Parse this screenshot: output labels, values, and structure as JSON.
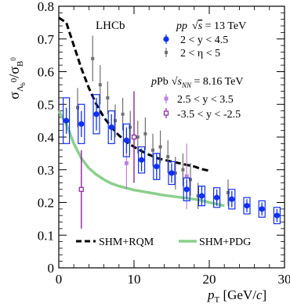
{
  "chart_data": {
    "type": "scatter",
    "title": "",
    "experiment_label": "LHCb",
    "xlabel": "p_T [GeV/c]",
    "ylabel": "σ_Λb / σ_B0",
    "xlim": [
      0,
      30
    ],
    "ylim": [
      0,
      0.8
    ],
    "x_ticks": [
      0,
      10,
      20,
      30
    ],
    "y_ticks": [
      0,
      0.1,
      0.2,
      0.3,
      0.4,
      0.5,
      0.6,
      0.7,
      0.8
    ],
    "x_tick_labels": [
      "0",
      "10",
      "20",
      "30"
    ],
    "y_tick_labels": [
      "0",
      "0.1",
      "0.2",
      "0.3",
      "0.4",
      "0.5",
      "0.6",
      "0.7",
      "0.8"
    ],
    "legend_pp_header": "pp √s = 13 TeV",
    "legend_ppb_header": "pPb √sNN = 8.16 TeV",
    "colors": {
      "blue": "#1030f0",
      "grey": "#707070",
      "light_purple": "#c080e0",
      "purple": "#9020a0",
      "black": "#000000",
      "green": "#8ccf8c"
    },
    "series": [
      {
        "name": "2 < y < 4.5",
        "group": "pp",
        "marker": "filled-circle",
        "x": [
          1,
          3,
          5,
          7,
          9,
          11,
          13,
          15,
          17,
          19,
          21,
          23,
          25,
          27,
          29
        ],
        "y": [
          0.45,
          0.44,
          0.47,
          0.43,
          0.39,
          0.33,
          0.31,
          0.29,
          0.24,
          0.22,
          0.215,
          0.21,
          0.19,
          0.18,
          0.16
        ],
        "stat_err": [
          0.04,
          0.04,
          0.05,
          0.04,
          0.04,
          0.035,
          0.04,
          0.03,
          0.03,
          0.03,
          0.025,
          0.025,
          0.02,
          0.02,
          0.02
        ],
        "syst_err": [
          0.07,
          0.06,
          0.06,
          0.05,
          0.05,
          0.04,
          0.04,
          0.035,
          0.035,
          0.03,
          0.03,
          0.03,
          0.025,
          0.025,
          0.025
        ]
      },
      {
        "name": "2 < η < 5",
        "group": "pp",
        "marker": "small-square",
        "x": [
          2.5,
          4.5,
          5.5,
          6.5,
          7.5,
          8.5,
          9.5,
          10.5,
          11.5,
          12.5,
          13.5,
          14.5,
          15.5,
          16.5,
          17.5,
          18.5,
          22.5
        ],
        "y": [
          0.49,
          0.64,
          0.56,
          0.52,
          0.45,
          0.47,
          0.43,
          0.4,
          0.41,
          0.36,
          0.37,
          0.34,
          0.29,
          0.3,
          0.27,
          0.22,
          0.23
        ],
        "stat_err": [
          0.06,
          0.07,
          0.06,
          0.05,
          0.05,
          0.05,
          0.05,
          0.05,
          0.05,
          0.05,
          0.05,
          0.05,
          0.05,
          0.05,
          0.05,
          0.04,
          0.04
        ]
      },
      {
        "name": "2.5 < y < 3.5",
        "group": "pPb",
        "marker": "filled-square",
        "x": [
          9,
          17
        ],
        "y": [
          0.32,
          0.28
        ],
        "stat_err": [
          0.08,
          0.1
        ]
      },
      {
        "name": "-3.5 < y < -2.5",
        "group": "pPb",
        "marker": "open-square",
        "x": [
          3,
          10
        ],
        "y": [
          0.24,
          0.4
        ],
        "stat_err": [
          0.12,
          0.14
        ]
      },
      {
        "name": "SHM+RQM",
        "style": "dashed-line",
        "x": [
          0,
          1,
          2,
          3,
          4,
          5,
          6,
          7,
          8,
          9,
          10,
          11,
          12,
          13,
          14,
          15,
          16,
          17,
          18,
          19,
          20
        ],
        "y": [
          0.765,
          0.75,
          0.68,
          0.61,
          0.55,
          0.5,
          0.46,
          0.43,
          0.405,
          0.385,
          0.37,
          0.357,
          0.346,
          0.336,
          0.33,
          0.325,
          0.32,
          0.315,
          0.31,
          0.302,
          0.297
        ]
      },
      {
        "name": "SHM+PDG",
        "style": "solid-line",
        "x": [
          0,
          1,
          2,
          3,
          4,
          5,
          6,
          7,
          8,
          9,
          10,
          11,
          12,
          13,
          14,
          15,
          16,
          17,
          18,
          19,
          20,
          21,
          22
        ],
        "y": [
          0.48,
          0.44,
          0.38,
          0.335,
          0.305,
          0.285,
          0.27,
          0.258,
          0.25,
          0.244,
          0.238,
          0.234,
          0.23,
          0.226,
          0.222,
          0.219,
          0.216,
          0.213,
          0.21,
          0.206,
          0.2,
          0.195,
          0.19
        ]
      }
    ]
  }
}
